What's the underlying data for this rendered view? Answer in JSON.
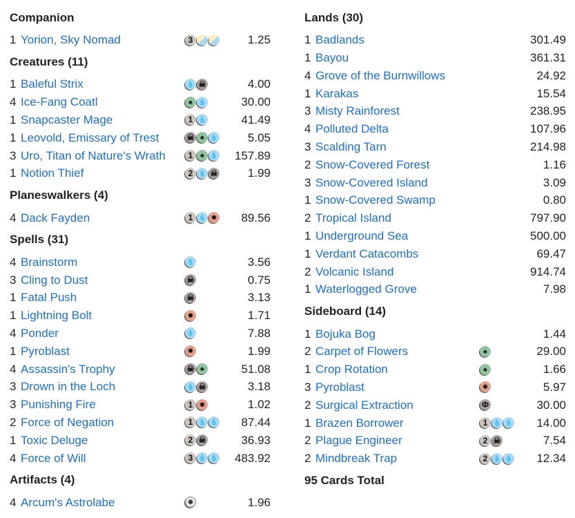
{
  "mana_colors": {
    "U": "#aad8f0",
    "B": "#a69f9d",
    "G": "#8fc49f",
    "R": "#e3a08a",
    "generic": "#cac5c0",
    "link": "#1a6fd0"
  },
  "left_sections": [
    {
      "title": "Companion",
      "cards": [
        {
          "qty": "1",
          "name": "Yorion, Sky Nomad",
          "mana": [
            "3",
            "WU",
            "WU"
          ],
          "price": "1.25"
        }
      ]
    },
    {
      "title": "Creatures (11)",
      "cards": [
        {
          "qty": "1",
          "name": "Baleful Strix",
          "mana": [
            "U",
            "B"
          ],
          "price": "4.00"
        },
        {
          "qty": "4",
          "name": "Ice-Fang Coatl",
          "mana": [
            "G",
            "U"
          ],
          "price": "30.00"
        },
        {
          "qty": "1",
          "name": "Snapcaster Mage",
          "mana": [
            "1",
            "U"
          ],
          "price": "41.49"
        },
        {
          "qty": "1",
          "name": "Leovold, Emissary of Trest",
          "mana": [
            "B",
            "G",
            "U"
          ],
          "price": "5.05"
        },
        {
          "qty": "3",
          "name": "Uro, Titan of Nature's Wrath",
          "mana": [
            "1",
            "G",
            "U"
          ],
          "price": "157.89"
        },
        {
          "qty": "1",
          "name": "Notion Thief",
          "mana": [
            "2",
            "U",
            "B"
          ],
          "price": "1.99"
        }
      ]
    },
    {
      "title": "Planeswalkers (4)",
      "cards": [
        {
          "qty": "4",
          "name": "Dack Fayden",
          "mana": [
            "1",
            "U",
            "R"
          ],
          "price": "89.56"
        }
      ]
    },
    {
      "title": "Spells (31)",
      "cards": [
        {
          "qty": "4",
          "name": "Brainstorm",
          "mana": [
            "U"
          ],
          "price": "3.56"
        },
        {
          "qty": "3",
          "name": "Cling to Dust",
          "mana": [
            "B"
          ],
          "price": "0.75"
        },
        {
          "qty": "1",
          "name": "Fatal Push",
          "mana": [
            "B"
          ],
          "price": "3.13"
        },
        {
          "qty": "1",
          "name": "Lightning Bolt",
          "mana": [
            "R"
          ],
          "price": "1.71"
        },
        {
          "qty": "4",
          "name": "Ponder",
          "mana": [
            "U"
          ],
          "price": "7.88"
        },
        {
          "qty": "1",
          "name": "Pyroblast",
          "mana": [
            "R"
          ],
          "price": "1.99"
        },
        {
          "qty": "4",
          "name": "Assassin's Trophy",
          "mana": [
            "B",
            "G"
          ],
          "price": "51.08"
        },
        {
          "qty": "3",
          "name": "Drown in the Loch",
          "mana": [
            "U",
            "B"
          ],
          "price": "3.18"
        },
        {
          "qty": "3",
          "name": "Punishing Fire",
          "mana": [
            "1",
            "R"
          ],
          "price": "1.02"
        },
        {
          "qty": "2",
          "name": "Force of Negation",
          "mana": [
            "1",
            "U",
            "U"
          ],
          "price": "87.44"
        },
        {
          "qty": "1",
          "name": "Toxic Deluge",
          "mana": [
            "2",
            "B"
          ],
          "price": "36.93"
        },
        {
          "qty": "4",
          "name": "Force of Will",
          "mana": [
            "3",
            "U",
            "U"
          ],
          "price": "483.92"
        }
      ]
    },
    {
      "title": "Artifacts (4)",
      "cards": [
        {
          "qty": "4",
          "name": "Arcum's Astrolabe",
          "mana": [
            "S"
          ],
          "price": "1.96"
        }
      ]
    }
  ],
  "right_sections": [
    {
      "title": "Lands (30)",
      "cards": [
        {
          "qty": "1",
          "name": "Badlands",
          "mana": [],
          "price": "301.49"
        },
        {
          "qty": "1",
          "name": "Bayou",
          "mana": [],
          "price": "361.31"
        },
        {
          "qty": "4",
          "name": "Grove of the Burnwillows",
          "mana": [],
          "price": "24.92"
        },
        {
          "qty": "1",
          "name": "Karakas",
          "mana": [],
          "price": "15.54"
        },
        {
          "qty": "3",
          "name": "Misty Rainforest",
          "mana": [],
          "price": "238.95"
        },
        {
          "qty": "4",
          "name": "Polluted Delta",
          "mana": [],
          "price": "107.96"
        },
        {
          "qty": "3",
          "name": "Scalding Tarn",
          "mana": [],
          "price": "214.98"
        },
        {
          "qty": "2",
          "name": "Snow-Covered Forest",
          "mana": [],
          "price": "1.16"
        },
        {
          "qty": "3",
          "name": "Snow-Covered Island",
          "mana": [],
          "price": "3.09"
        },
        {
          "qty": "1",
          "name": "Snow-Covered Swamp",
          "mana": [],
          "price": "0.80"
        },
        {
          "qty": "2",
          "name": "Tropical Island",
          "mana": [],
          "price": "797.90"
        },
        {
          "qty": "1",
          "name": "Underground Sea",
          "mana": [],
          "price": "500.00"
        },
        {
          "qty": "1",
          "name": "Verdant Catacombs",
          "mana": [],
          "price": "69.47"
        },
        {
          "qty": "2",
          "name": "Volcanic Island",
          "mana": [],
          "price": "914.74"
        },
        {
          "qty": "1",
          "name": "Waterlogged Grove",
          "mana": [],
          "price": "7.98"
        }
      ]
    },
    {
      "title": "Sideboard (14)",
      "cards": [
        {
          "qty": "1",
          "name": "Bojuka Bog",
          "mana": [],
          "price": "1.44"
        },
        {
          "qty": "2",
          "name": "Carpet of Flowers",
          "mana": [
            "G"
          ],
          "price": "29.00"
        },
        {
          "qty": "1",
          "name": "Crop Rotation",
          "mana": [
            "G"
          ],
          "price": "1.66"
        },
        {
          "qty": "3",
          "name": "Pyroblast",
          "mana": [
            "R"
          ],
          "price": "5.97"
        },
        {
          "qty": "2",
          "name": "Surgical Extraction",
          "mana": [
            "P"
          ],
          "price": "30.00"
        },
        {
          "qty": "1",
          "name": "Brazen Borrower",
          "mana": [
            "1",
            "U",
            "U"
          ],
          "price": "14.00"
        },
        {
          "qty": "2",
          "name": "Plague Engineer",
          "mana": [
            "2",
            "B"
          ],
          "price": "7.54"
        },
        {
          "qty": "2",
          "name": "Mindbreak Trap",
          "mana": [
            "2",
            "U",
            "U"
          ],
          "price": "12.34"
        }
      ]
    },
    {
      "title": "95 Cards Total",
      "cards": []
    }
  ]
}
